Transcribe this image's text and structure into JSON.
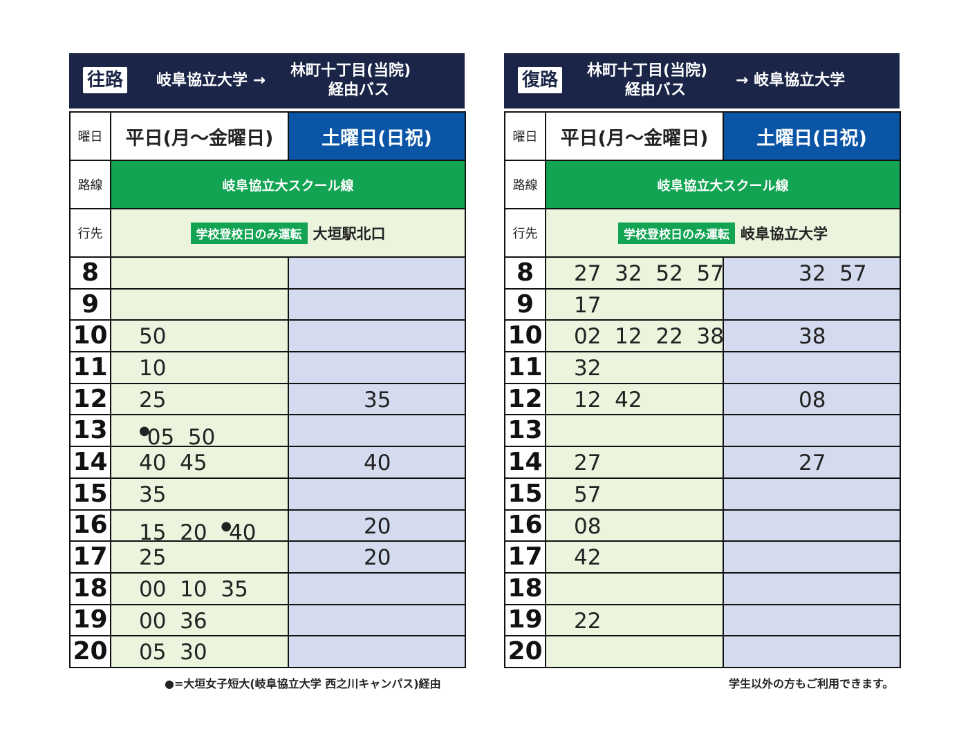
{
  "outbound": {
    "badge": "往路",
    "title_part1": "岐阜協立大学 →",
    "title_part2_line1": "林町十丁目(当院)",
    "title_part2_line2": "経由バス",
    "day_label": "曜日",
    "weekday_header": "平日(月〜金曜日)",
    "weekend_header": "土曜日(日祝)",
    "route_label": "路線",
    "route_name": "岐阜協立大スクール線",
    "dest_label": "行先",
    "dest_badge": "学校登校日のみ運転",
    "dest_name": "大垣駅北口",
    "hours": [
      {
        "hour": "8",
        "weekday": [],
        "weekend": []
      },
      {
        "hour": "9",
        "weekday": [],
        "weekend": []
      },
      {
        "hour": "10",
        "weekday": [
          {
            "t": "50"
          }
        ],
        "weekend": []
      },
      {
        "hour": "11",
        "weekday": [
          {
            "t": "10"
          }
        ],
        "weekend": []
      },
      {
        "hour": "12",
        "weekday": [
          {
            "t": "25"
          }
        ],
        "weekend": [
          "35"
        ]
      },
      {
        "hour": "13",
        "weekday": [
          {
            "t": "05",
            "dot": true
          },
          {
            "t": "50"
          }
        ],
        "weekend": []
      },
      {
        "hour": "14",
        "weekday": [
          {
            "t": "40"
          },
          {
            "t": "45"
          }
        ],
        "weekend": [
          "40"
        ]
      },
      {
        "hour": "15",
        "weekday": [
          {
            "t": "35"
          }
        ],
        "weekend": []
      },
      {
        "hour": "16",
        "weekday": [
          {
            "t": "15"
          },
          {
            "t": "20"
          },
          {
            "t": "40",
            "dot": true
          }
        ],
        "weekend": [
          "20"
        ]
      },
      {
        "hour": "17",
        "weekday": [
          {
            "t": "25"
          }
        ],
        "weekend": [
          "20"
        ]
      },
      {
        "hour": "18",
        "weekday": [
          {
            "t": "00"
          },
          {
            "t": "10"
          },
          {
            "t": "35"
          }
        ],
        "weekend": []
      },
      {
        "hour": "19",
        "weekday": [
          {
            "t": "00"
          },
          {
            "t": "36"
          }
        ],
        "weekend": []
      },
      {
        "hour": "20",
        "weekday": [
          {
            "t": "05"
          },
          {
            "t": "30"
          }
        ],
        "weekend": []
      }
    ],
    "note": "●=大垣女子短大(岐阜協立大学 西之川キャンパス)経由"
  },
  "return": {
    "badge": "復路",
    "title_part1_line1": "林町十丁目(当院)",
    "title_part1_line2": "経由バス",
    "title_part2": "→ 岐阜協立大学",
    "day_label": "曜日",
    "weekday_header": "平日(月〜金曜日)",
    "weekend_header": "土曜日(日祝)",
    "route_label": "路線",
    "route_name": "岐阜協立大スクール線",
    "dest_label": "行先",
    "dest_badge": "学校登校日のみ運転",
    "dest_name": "岐阜協立大学",
    "hours": [
      {
        "hour": "8",
        "weekday": [
          {
            "t": "27"
          },
          {
            "t": "32"
          },
          {
            "t": "52"
          },
          {
            "t": "57"
          }
        ],
        "weekend": [
          "32",
          "57"
        ]
      },
      {
        "hour": "9",
        "weekday": [
          {
            "t": "17"
          }
        ],
        "weekend": []
      },
      {
        "hour": "10",
        "weekday": [
          {
            "t": "02"
          },
          {
            "t": "12"
          },
          {
            "t": "22"
          },
          {
            "t": "38"
          }
        ],
        "weekend": [
          "38"
        ]
      },
      {
        "hour": "11",
        "weekday": [
          {
            "t": "32"
          }
        ],
        "weekend": []
      },
      {
        "hour": "12",
        "weekday": [
          {
            "t": "12"
          },
          {
            "t": "42"
          }
        ],
        "weekend": [
          "08"
        ]
      },
      {
        "hour": "13",
        "weekday": [],
        "weekend": []
      },
      {
        "hour": "14",
        "weekday": [
          {
            "t": "27"
          }
        ],
        "weekend": [
          "27"
        ]
      },
      {
        "hour": "15",
        "weekday": [
          {
            "t": "57"
          }
        ],
        "weekend": []
      },
      {
        "hour": "16",
        "weekday": [
          {
            "t": "08"
          }
        ],
        "weekend": []
      },
      {
        "hour": "17",
        "weekday": [
          {
            "t": "42"
          }
        ],
        "weekend": []
      },
      {
        "hour": "18",
        "weekday": [],
        "weekend": []
      },
      {
        "hour": "19",
        "weekday": [
          {
            "t": "22"
          }
        ],
        "weekend": []
      },
      {
        "hour": "20",
        "weekday": [],
        "weekend": []
      }
    ],
    "note": "学生以外の方もご利用できます。"
  }
}
